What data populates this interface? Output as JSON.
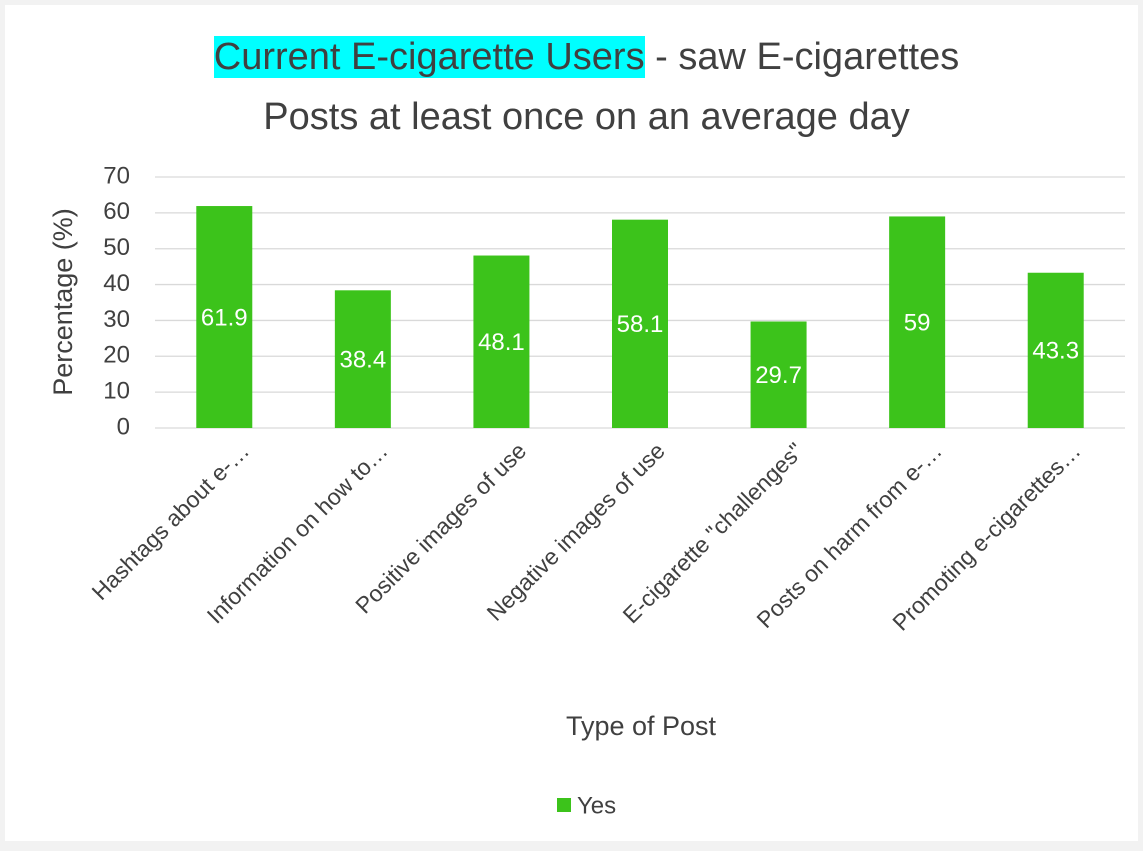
{
  "chart_data": {
    "type": "bar",
    "title": {
      "highlight": "Current E-cigarette Users",
      "lines": [
        "- saw E-cigarettes",
        "Posts at least once on an average day"
      ]
    },
    "x_label": "Type of Post",
    "y_label": "Percentage (%)",
    "categories": [
      "Hashtags about e-…",
      "Information on how to…",
      "Positive images of use",
      "Negative images of use",
      "E-cigarette \"challenges\"",
      "Posts on harm from e-…",
      "Promoting e-cigarettes…"
    ],
    "series": [
      {
        "name": "Yes",
        "color": "#3cc31b",
        "values": [
          61.9,
          38.4,
          48.1,
          58.1,
          29.7,
          59,
          43.3
        ]
      }
    ],
    "ylim": [
      0,
      70
    ],
    "yticks": [
      0,
      10,
      20,
      30,
      40,
      50,
      60,
      70
    ],
    "grid": true,
    "legend": "bottom"
  }
}
